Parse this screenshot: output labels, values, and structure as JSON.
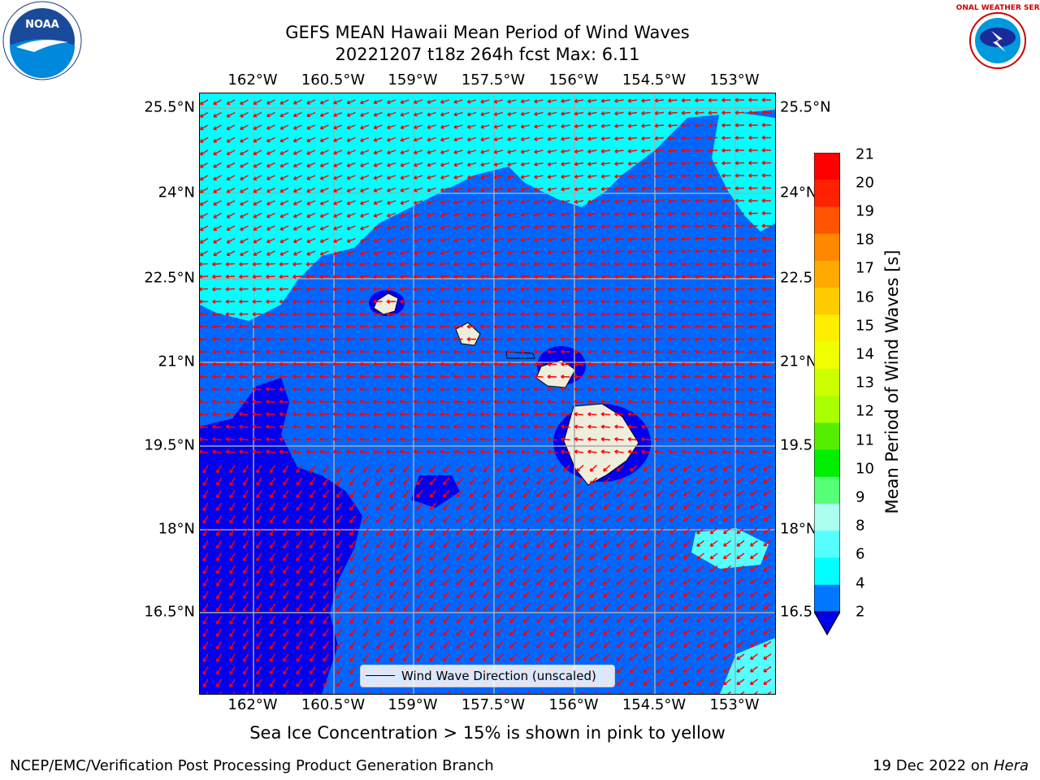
{
  "title": {
    "line1": "GEFS MEAN Hawaii Mean Period of Wind Waves",
    "line2": "20221207 t18z 264h fcst   Max: 6.11"
  },
  "logos": {
    "left": {
      "name": "noaa-logo",
      "text": "NOAA"
    },
    "right": {
      "name": "nws-logo",
      "text": "NATIONAL WEATHER SERVICE"
    }
  },
  "map": {
    "lon_ticks": [
      "162°W",
      "160.5°W",
      "159°W",
      "157.5°W",
      "156°W",
      "154.5°W",
      "153°W"
    ],
    "lat_ticks": [
      "25.5°N",
      "24°N",
      "22.5°N",
      "21°N",
      "19.5°N",
      "18°N",
      "16.5°N"
    ],
    "colors": {
      "dark_blue": "#0000ee",
      "mid_blue": "#0066ff",
      "light_blue": "#0099ff",
      "cyan": "#00ffff",
      "pale_cyan": "#55ffff",
      "land": "#efeddc",
      "arrow": "#ff0000",
      "grid": "#aaaaaa"
    },
    "legend_label": "Wind Wave Direction (unscaled)"
  },
  "colorbar": {
    "label": "Mean Period of Wind Waves [s]",
    "ticks": [
      "21",
      "20",
      "19",
      "18",
      "17",
      "16",
      "15",
      "14",
      "13",
      "12",
      "11",
      "10",
      "9",
      "8",
      "6",
      "4",
      "2"
    ],
    "colors": [
      "#ff0000",
      "#ff2200",
      "#ff5500",
      "#ff8800",
      "#ffaa00",
      "#ffcc00",
      "#ffee00",
      "#f0ff00",
      "#ccff00",
      "#aaff00",
      "#55ee00",
      "#00ee00",
      "#55ff77",
      "#aaffee",
      "#55ffff",
      "#00ffff",
      "#0077ff"
    ],
    "extend_color": "#0000ee"
  },
  "subtitle": "Sea Ice Concentration > 15% is shown in pink to yellow",
  "footer": {
    "left": "NCEP/EMC/Verification Post Processing Product Generation Branch",
    "right_prefix": "19 Dec 2022 on ",
    "right_italic": "Hera"
  }
}
